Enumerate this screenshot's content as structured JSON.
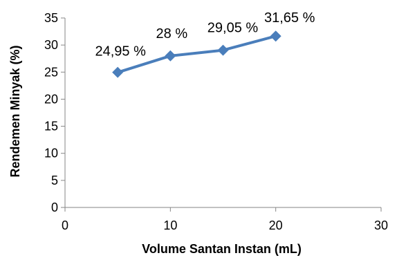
{
  "chart_data": {
    "type": "line",
    "title": "",
    "xlabel": "Volume Santan Instan (mL)",
    "ylabel": "Rendemen Minyak (%)",
    "xlim": [
      0,
      30
    ],
    "ylim": [
      0,
      35
    ],
    "x_ticks": [
      0,
      10,
      20,
      30
    ],
    "y_ticks": [
      0,
      5,
      10,
      15,
      20,
      25,
      30,
      35
    ],
    "grid": false,
    "legend": "none",
    "series": [
      {
        "color": "#4a7ebb",
        "marker": "diamond",
        "points": [
          {
            "x": 5,
            "y": 24.95,
            "label": "24,95 %"
          },
          {
            "x": 10,
            "y": 28,
            "label": "28 %"
          },
          {
            "x": 15,
            "y": 29.05,
            "label": "29,05 %"
          },
          {
            "x": 20,
            "y": 31.65,
            "label": "31,65 %"
          }
        ]
      }
    ]
  }
}
